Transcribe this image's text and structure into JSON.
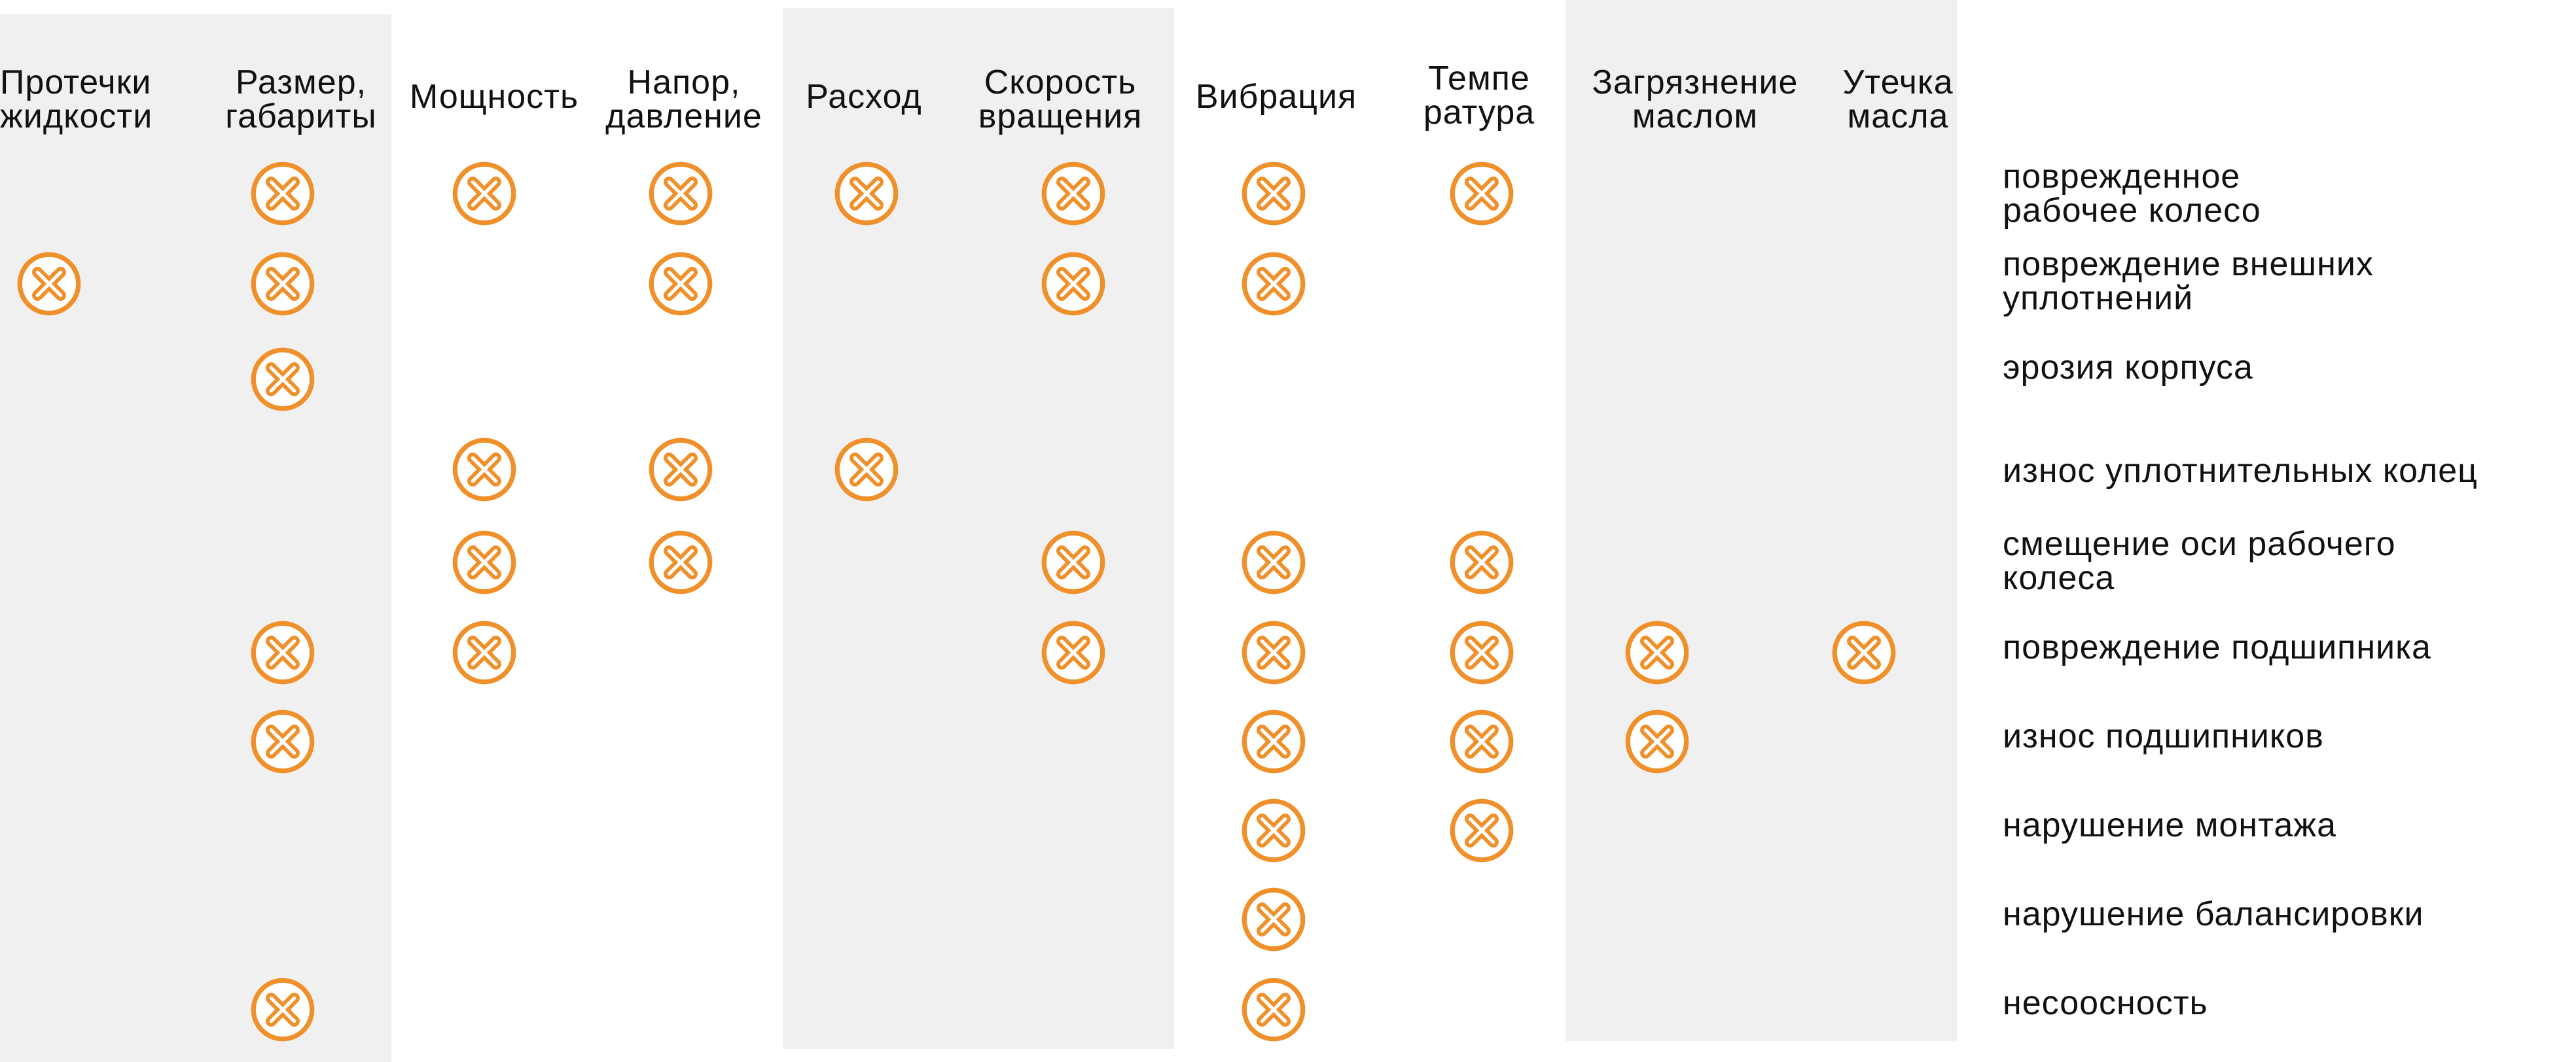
{
  "columns": [
    {
      "lines": [
        "Протечки",
        "жидкости"
      ]
    },
    {
      "lines": [
        "Размер,",
        "габариты"
      ]
    },
    {
      "lines": [
        "Мощность"
      ]
    },
    {
      "lines": [
        "Напор,",
        "давление"
      ]
    },
    {
      "lines": [
        "Расход"
      ]
    },
    {
      "lines": [
        "Скорость",
        "вращения"
      ]
    },
    {
      "lines": [
        "Вибрация"
      ]
    },
    {
      "lines": [
        "Темпе",
        "ратура"
      ]
    },
    {
      "lines": [
        "Загрязнение",
        "маслом"
      ]
    },
    {
      "lines": [
        "Утечка",
        "масла"
      ]
    }
  ],
  "rows": [
    {
      "lines": [
        "поврежденное",
        "рабочее колесо"
      ],
      "marks": [
        1,
        2,
        3,
        4,
        5,
        6,
        7
      ]
    },
    {
      "lines": [
        "повреждение внешних",
        "уплотнений"
      ],
      "marks": [
        0,
        1,
        3,
        5,
        6
      ]
    },
    {
      "lines": [
        "эрозия корпуса"
      ],
      "marks": [
        1
      ]
    },
    {
      "lines": [
        "износ уплотнительных колец"
      ],
      "marks": [
        2,
        3,
        4
      ]
    },
    {
      "lines": [
        "смещение оси рабочего",
        "колеса"
      ],
      "marks": [
        2,
        3,
        5,
        6,
        7
      ]
    },
    {
      "lines": [
        "повреждение подшипника"
      ],
      "marks": [
        1,
        2,
        5,
        6,
        7,
        8,
        9
      ]
    },
    {
      "lines": [
        "износ подшипников"
      ],
      "marks": [
        1,
        6,
        7,
        8
      ]
    },
    {
      "lines": [
        "нарушение монтажа"
      ],
      "marks": [
        6,
        7
      ]
    },
    {
      "lines": [
        "нарушение балансировки"
      ],
      "marks": [
        6
      ]
    },
    {
      "lines": [
        "несоосность"
      ],
      "marks": [
        1,
        6
      ]
    }
  ],
  "marker_icon": "x-circle-icon",
  "colors": {
    "marker": "#f0902a",
    "band": "#f0f0f0",
    "text": "#111111"
  }
}
